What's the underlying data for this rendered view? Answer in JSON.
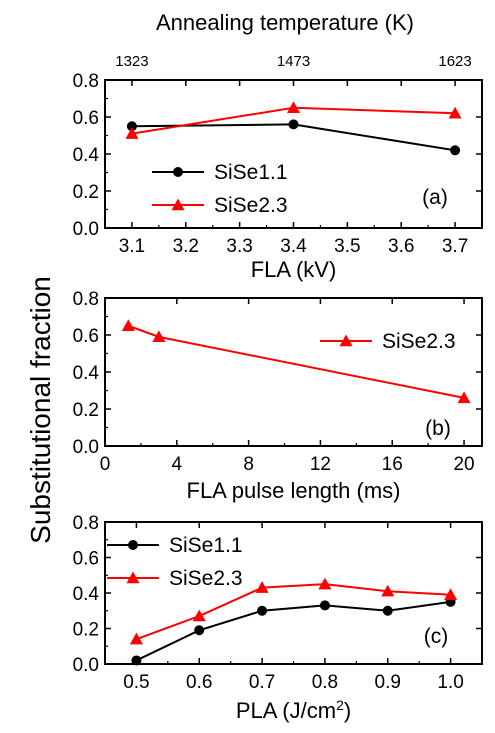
{
  "figure": {
    "shared_ylabel": "Substitutional fraction",
    "top_axis_label": "Annealing temperature (K)"
  },
  "chart_data": [
    {
      "type": "line",
      "panel_label": "(a)",
      "xlabel": "FLA (kV)",
      "ylabel": "",
      "xlim": [
        3.05,
        3.75
      ],
      "ylim": [
        0.0,
        0.8
      ],
      "x_ticks": [
        "3.1",
        "3.2",
        "3.3",
        "3.4",
        "3.5",
        "3.6",
        "3.7"
      ],
      "y_ticks": [
        "0.0",
        "0.2",
        "0.4",
        "0.6",
        "0.8"
      ],
      "top_axis": {
        "label": "Annealing temperature (K)",
        "ticks": [
          {
            "x": 3.1,
            "label": "1323"
          },
          {
            "x": 3.4,
            "label": "1473"
          },
          {
            "x": 3.7,
            "label": "1623"
          }
        ]
      },
      "legend_position": "bottom-left",
      "series": [
        {
          "name": "SiSe1.1",
          "color": "#000000",
          "marker": "circle",
          "x": [
            3.1,
            3.4,
            3.7
          ],
          "y": [
            0.55,
            0.56,
            0.42
          ]
        },
        {
          "name": "SiSe2.3",
          "color": "#ff0000",
          "marker": "triangle",
          "x": [
            3.1,
            3.4,
            3.7
          ],
          "y": [
            0.51,
            0.65,
            0.62
          ]
        }
      ]
    },
    {
      "type": "line",
      "panel_label": "(b)",
      "xlabel": "FLA pulse length (ms)",
      "ylabel": "",
      "xlim": [
        0,
        21
      ],
      "ylim": [
        0.0,
        0.8
      ],
      "x_ticks": [
        "0",
        "4",
        "8",
        "12",
        "16",
        "20"
      ],
      "y_ticks": [
        "0.0",
        "0.2",
        "0.4",
        "0.6",
        "0.8"
      ],
      "legend_position": "top-right",
      "series": [
        {
          "name": "SiSe2.3",
          "color": "#ff0000",
          "marker": "triangle",
          "x": [
            1.3,
            3.0,
            20.0
          ],
          "y": [
            0.65,
            0.59,
            0.26
          ]
        }
      ]
    },
    {
      "type": "line",
      "panel_label": "(c)",
      "xlabel": "PLA (J/cm",
      "xlabel_sup": "2",
      "xlabel_end": ")",
      "ylabel": "",
      "xlim": [
        0.45,
        1.05
      ],
      "ylim": [
        0.0,
        0.8
      ],
      "x_ticks": [
        "0.5",
        "0.6",
        "0.7",
        "0.8",
        "0.9",
        "1.0"
      ],
      "y_ticks": [
        "0.0",
        "0.2",
        "0.4",
        "0.6",
        "0.8"
      ],
      "legend_position": "top-left",
      "series": [
        {
          "name": "SiSe1.1",
          "color": "#000000",
          "marker": "circle",
          "x": [
            0.5,
            0.6,
            0.7,
            0.8,
            0.9,
            1.0
          ],
          "y": [
            0.02,
            0.19,
            0.3,
            0.33,
            0.3,
            0.35
          ]
        },
        {
          "name": "SiSe2.3",
          "color": "#ff0000",
          "marker": "triangle",
          "x": [
            0.5,
            0.6,
            0.7,
            0.8,
            0.9,
            1.0
          ],
          "y": [
            0.14,
            0.27,
            0.43,
            0.45,
            0.41,
            0.39
          ]
        }
      ]
    }
  ]
}
